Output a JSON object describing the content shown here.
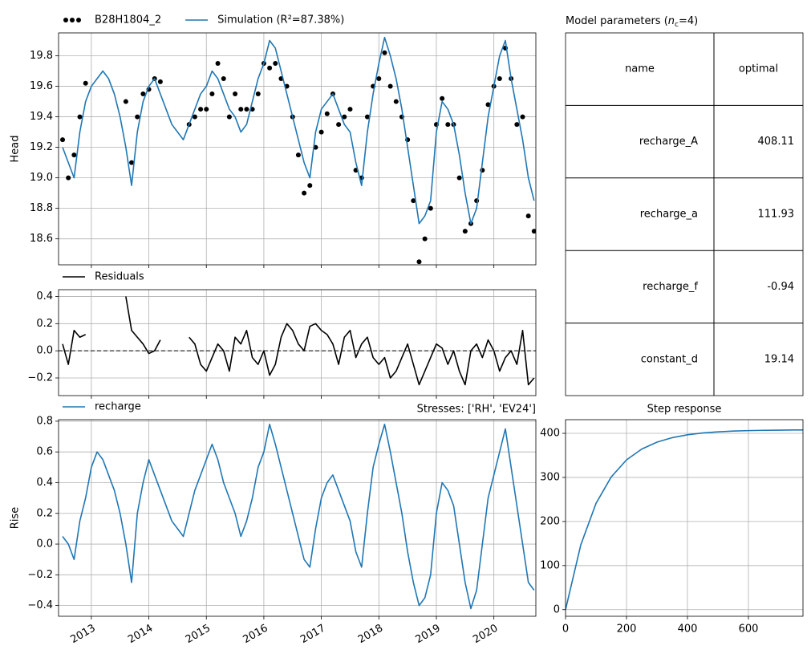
{
  "chart_data": [
    {
      "type": "line",
      "ylabel": "Head",
      "x": [
        2012.5,
        2012.6,
        2012.7,
        2012.8,
        2012.9,
        2013.0,
        2013.1,
        2013.2,
        2013.3,
        2013.4,
        2013.5,
        2013.6,
        2013.7,
        2013.8,
        2013.9,
        2014.0,
        2014.1,
        2014.2,
        2014.3,
        2014.4,
        2014.5,
        2014.6,
        2014.7,
        2014.8,
        2014.9,
        2015.0,
        2015.1,
        2015.2,
        2015.3,
        2015.4,
        2015.5,
        2015.6,
        2015.7,
        2015.8,
        2015.9,
        2016.0,
        2016.1,
        2016.2,
        2016.3,
        2016.4,
        2016.5,
        2016.6,
        2016.7,
        2016.8,
        2016.9,
        2017.0,
        2017.1,
        2017.2,
        2017.3,
        2017.4,
        2017.5,
        2017.6,
        2017.7,
        2017.8,
        2017.9,
        2018.0,
        2018.1,
        2018.2,
        2018.3,
        2018.4,
        2018.5,
        2018.6,
        2018.7,
        2018.8,
        2018.9,
        2019.0,
        2019.1,
        2019.2,
        2019.3,
        2019.4,
        2019.5,
        2019.6,
        2019.7,
        2019.8,
        2019.9,
        2020.0,
        2020.1,
        2020.2,
        2020.3,
        2020.4,
        2020.5,
        2020.6,
        2020.7
      ],
      "xlim": [
        2012.43,
        2020.73
      ],
      "xticks": [
        2013,
        2014,
        2015,
        2016,
        2017,
        2018,
        2019,
        2020
      ],
      "ylim": [
        18.43,
        19.95
      ],
      "yticks": [
        18.6,
        18.8,
        {
          "value": 19,
          "label": "19.0"
        },
        19.2,
        19.4,
        19.6,
        19.8
      ],
      "grid": true,
      "series": [
        {
          "name": "B28H1804_2",
          "color": "#000000",
          "style": "markers",
          "values": [
            19.25,
            19.0,
            19.15,
            19.4,
            19.62,
            null,
            null,
            null,
            null,
            null,
            null,
            19.5,
            19.1,
            19.4,
            19.55,
            19.58,
            19.65,
            19.63,
            null,
            null,
            null,
            null,
            19.35,
            19.4,
            19.45,
            19.45,
            19.55,
            19.75,
            19.65,
            19.4,
            19.55,
            19.45,
            19.45,
            19.45,
            19.55,
            19.75,
            19.72,
            19.75,
            19.65,
            19.6,
            19.4,
            19.15,
            18.9,
            18.95,
            19.2,
            19.3,
            19.42,
            19.55,
            19.35,
            19.4,
            19.45,
            19.05,
            19.0,
            19.4,
            19.6,
            19.65,
            19.82,
            19.6,
            19.5,
            19.4,
            19.25,
            18.85,
            18.45,
            18.6,
            18.8,
            19.35,
            19.52,
            19.35,
            19.35,
            19.0,
            18.65,
            18.7,
            18.85,
            19.05,
            19.48,
            19.6,
            19.65,
            19.85,
            19.65,
            19.35,
            19.4,
            18.75,
            18.65
          ]
        },
        {
          "name": "Simulation (R²=87.38%)",
          "color": "#1f77b4",
          "style": "line",
          "values": [
            19.2,
            19.1,
            19.0,
            19.3,
            19.5,
            19.6,
            19.65,
            19.7,
            19.65,
            19.55,
            19.4,
            19.2,
            18.95,
            19.3,
            19.5,
            19.6,
            19.65,
            19.55,
            19.45,
            19.35,
            19.3,
            19.25,
            19.35,
            19.45,
            19.55,
            19.6,
            19.7,
            19.65,
            19.55,
            19.45,
            19.4,
            19.3,
            19.35,
            19.5,
            19.65,
            19.75,
            19.9,
            19.85,
            19.7,
            19.55,
            19.4,
            19.25,
            19.1,
            19.0,
            19.3,
            19.45,
            19.5,
            19.55,
            19.45,
            19.35,
            19.3,
            19.1,
            18.95,
            19.3,
            19.55,
            19.75,
            19.92,
            19.8,
            19.65,
            19.45,
            19.2,
            18.95,
            18.7,
            18.75,
            18.85,
            19.3,
            19.5,
            19.45,
            19.35,
            19.15,
            18.9,
            18.7,
            18.8,
            19.1,
            19.4,
            19.6,
            19.8,
            19.9,
            19.65,
            19.45,
            19.25,
            19.0,
            18.85
          ]
        }
      ]
    },
    {
      "type": "line",
      "x": [
        2012.5,
        2012.6,
        2012.7,
        2012.8,
        2012.9,
        2013.0,
        2013.1,
        2013.2,
        2013.3,
        2013.4,
        2013.5,
        2013.6,
        2013.7,
        2013.8,
        2013.9,
        2014.0,
        2014.1,
        2014.2,
        2014.3,
        2014.4,
        2014.5,
        2014.6,
        2014.7,
        2014.8,
        2014.9,
        2015.0,
        2015.1,
        2015.2,
        2015.3,
        2015.4,
        2015.5,
        2015.6,
        2015.7,
        2015.8,
        2015.9,
        2016.0,
        2016.1,
        2016.2,
        2016.3,
        2016.4,
        2016.5,
        2016.6,
        2016.7,
        2016.8,
        2016.9,
        2017.0,
        2017.1,
        2017.2,
        2017.3,
        2017.4,
        2017.5,
        2017.6,
        2017.7,
        2017.8,
        2017.9,
        2018.0,
        2018.1,
        2018.2,
        2018.3,
        2018.4,
        2018.5,
        2018.6,
        2018.7,
        2018.8,
        2018.9,
        2019.0,
        2019.1,
        2019.2,
        2019.3,
        2019.4,
        2019.5,
        2019.6,
        2019.7,
        2019.8,
        2019.9,
        2020.0,
        2020.1,
        2020.2,
        2020.3,
        2020.4,
        2020.5,
        2020.6,
        2020.7
      ],
      "xlim": [
        2012.43,
        2020.73
      ],
      "xticks": [
        2013,
        2014,
        2015,
        2016,
        2017,
        2018,
        2019,
        2020
      ],
      "ylim": [
        -0.33,
        0.45
      ],
      "yticks": [
        {
          "value": -0.2,
          "label": "−0.2"
        },
        {
          "value": 0,
          "label": "0.0"
        },
        0.2,
        0.4
      ],
      "grid": true,
      "reference_line": 0,
      "series": [
        {
          "name": "Residuals",
          "color": "#000000",
          "style": "line",
          "values": [
            0.05,
            -0.1,
            0.15,
            0.1,
            0.12,
            null,
            null,
            null,
            null,
            null,
            null,
            0.4,
            0.15,
            0.1,
            0.05,
            -0.02,
            0.0,
            0.08,
            null,
            null,
            null,
            null,
            0.1,
            0.05,
            -0.1,
            -0.15,
            -0.05,
            0.05,
            0.0,
            -0.15,
            0.1,
            0.05,
            0.15,
            -0.05,
            -0.1,
            0.0,
            -0.18,
            -0.1,
            0.1,
            0.2,
            0.15,
            0.05,
            0.0,
            0.18,
            0.2,
            0.15,
            0.12,
            0.05,
            -0.1,
            0.1,
            0.15,
            -0.05,
            0.05,
            0.1,
            -0.05,
            -0.1,
            -0.05,
            -0.2,
            -0.15,
            -0.05,
            0.05,
            -0.1,
            -0.25,
            -0.15,
            -0.05,
            0.05,
            0.02,
            -0.1,
            0.0,
            -0.15,
            -0.25,
            0.0,
            0.05,
            -0.05,
            0.08,
            0.0,
            -0.15,
            -0.05,
            0.0,
            -0.1,
            0.15,
            -0.25,
            -0.2
          ]
        }
      ]
    },
    {
      "type": "line",
      "ylabel": "Rise",
      "annotation": "Stresses: ['RH', 'EV24']",
      "xtick_labels": true,
      "xtick_rotation": 30,
      "x": [
        2012.5,
        2012.6,
        2012.7,
        2012.8,
        2012.9,
        2013.0,
        2013.1,
        2013.2,
        2013.3,
        2013.4,
        2013.5,
        2013.6,
        2013.7,
        2013.8,
        2013.9,
        2014.0,
        2014.1,
        2014.2,
        2014.3,
        2014.4,
        2014.5,
        2014.6,
        2014.7,
        2014.8,
        2014.9,
        2015.0,
        2015.1,
        2015.2,
        2015.3,
        2015.4,
        2015.5,
        2015.6,
        2015.7,
        2015.8,
        2015.9,
        2016.0,
        2016.1,
        2016.2,
        2016.3,
        2016.4,
        2016.5,
        2016.6,
        2016.7,
        2016.8,
        2016.9,
        2017.0,
        2017.1,
        2017.2,
        2017.3,
        2017.4,
        2017.5,
        2017.6,
        2017.7,
        2017.8,
        2017.9,
        2018.0,
        2018.1,
        2018.2,
        2018.3,
        2018.4,
        2018.5,
        2018.6,
        2018.7,
        2018.8,
        2018.9,
        2019.0,
        2019.1,
        2019.2,
        2019.3,
        2019.4,
        2019.5,
        2019.6,
        2019.7,
        2019.8,
        2019.9,
        2020.0,
        2020.1,
        2020.2,
        2020.3,
        2020.4,
        2020.5,
        2020.6,
        2020.7
      ],
      "xlim": [
        2012.43,
        2020.73
      ],
      "xticks": [
        2013,
        2014,
        2015,
        2016,
        2017,
        2018,
        2019,
        2020
      ],
      "ylim": [
        -0.47,
        0.81
      ],
      "yticks": [
        {
          "value": -0.4,
          "label": "−0.4"
        },
        {
          "value": -0.2,
          "label": "−0.2"
        },
        {
          "value": 0,
          "label": "0.0"
        },
        0.2,
        0.4,
        0.6,
        0.8
      ],
      "grid": true,
      "series": [
        {
          "name": "recharge",
          "color": "#1f77b4",
          "style": "line",
          "values": [
            0.05,
            0.0,
            -0.1,
            0.15,
            0.3,
            0.5,
            0.6,
            0.55,
            0.45,
            0.35,
            0.2,
            0.0,
            -0.25,
            0.2,
            0.4,
            0.55,
            0.45,
            0.35,
            0.25,
            0.15,
            0.1,
            0.05,
            0.2,
            0.35,
            0.45,
            0.55,
            0.65,
            0.55,
            0.4,
            0.3,
            0.2,
            0.05,
            0.15,
            0.3,
            0.5,
            0.6,
            0.78,
            0.65,
            0.5,
            0.35,
            0.2,
            0.05,
            -0.1,
            -0.15,
            0.1,
            0.3,
            0.4,
            0.45,
            0.35,
            0.25,
            0.15,
            -0.05,
            -0.15,
            0.2,
            0.5,
            0.65,
            0.78,
            0.6,
            0.4,
            0.2,
            -0.05,
            -0.25,
            -0.4,
            -0.35,
            -0.2,
            0.2,
            0.4,
            0.35,
            0.25,
            0.0,
            -0.25,
            -0.42,
            -0.3,
            0.0,
            0.3,
            0.45,
            0.6,
            0.75,
            0.5,
            0.25,
            0.0,
            -0.25,
            -0.3
          ]
        }
      ]
    },
    {
      "type": "line",
      "title": "Step response",
      "xtick_labels": true,
      "x": [
        0,
        50,
        100,
        150,
        200,
        250,
        300,
        350,
        400,
        450,
        500,
        550,
        600,
        650,
        700,
        750,
        779
      ],
      "xlim": [
        0,
        779
      ],
      "xticks": [
        0,
        200,
        400,
        600
      ],
      "ylim": [
        -15,
        431
      ],
      "yticks": [
        0,
        100,
        200,
        300,
        400
      ],
      "grid": true,
      "series": [
        {
          "color": "#1f77b4",
          "style": "line",
          "values": [
            0,
            146.9,
            241.1,
            301.2,
            339.8,
            364.4,
            380.1,
            390.2,
            396.7,
            400.8,
            403.4,
            405.1,
            406.2,
            406.9,
            407.3,
            407.6,
            407.7
          ]
        }
      ]
    }
  ],
  "table": {
    "title_parts": [
      "Model parameters (",
      "n",
      "c",
      "=4)"
    ],
    "header": [
      "name",
      "optimal"
    ],
    "rows": [
      [
        "recharge_A",
        408.11
      ],
      [
        "recharge_a",
        111.93
      ],
      [
        "recharge_f",
        -0.94
      ],
      [
        "constant_d",
        19.14
      ]
    ]
  }
}
